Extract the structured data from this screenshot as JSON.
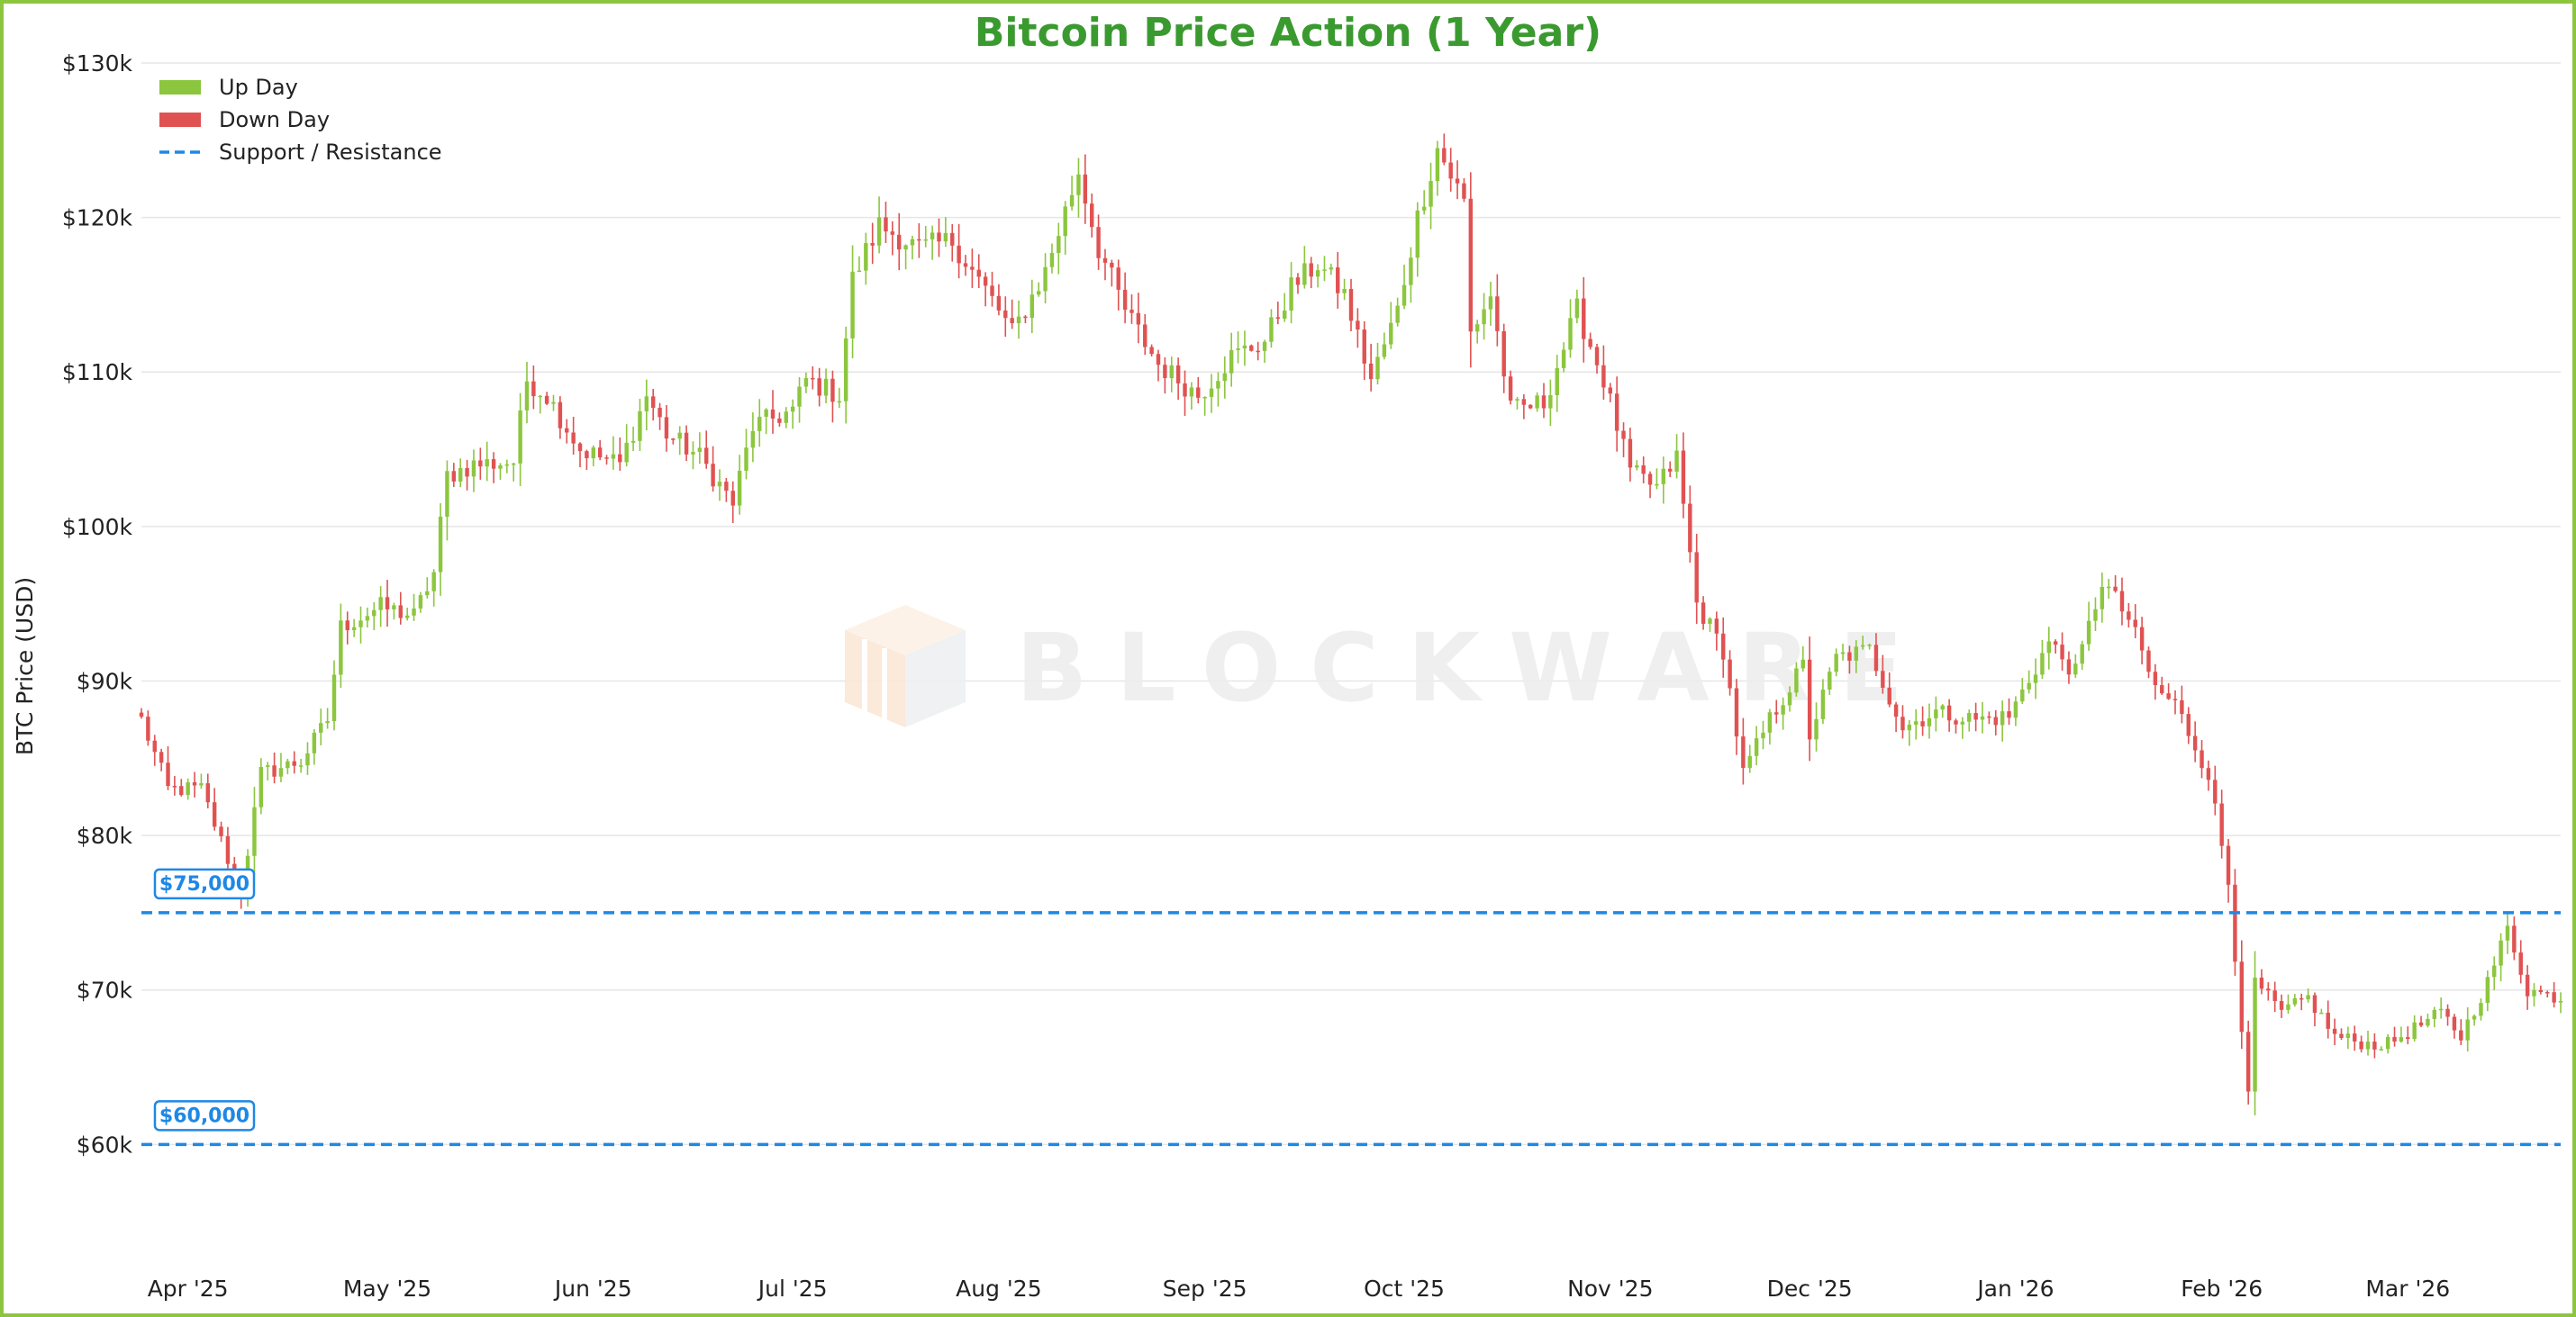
{
  "chart_data": {
    "type": "candlestick",
    "title": "Bitcoin Price Action (1 Year)",
    "ylabel": "BTC Price (USD)",
    "ylim": [
      56000,
      130000
    ],
    "y_ticks": [
      {
        "value": 60000,
        "label": "$60k"
      },
      {
        "value": 70000,
        "label": "$70k"
      },
      {
        "value": 80000,
        "label": "$80k"
      },
      {
        "value": 90000,
        "label": "$90k"
      },
      {
        "value": 100000,
        "label": "$100k"
      },
      {
        "value": 110000,
        "label": "$110k"
      },
      {
        "value": 120000,
        "label": "$120k"
      },
      {
        "value": 130000,
        "label": "$130k"
      }
    ],
    "x_ticks": [
      {
        "date": "2025-04-01",
        "label": "Apr '25"
      },
      {
        "date": "2025-05-01",
        "label": "May '25"
      },
      {
        "date": "2025-06-01",
        "label": "Jun '25"
      },
      {
        "date": "2025-07-01",
        "label": "Jul '25"
      },
      {
        "date": "2025-08-01",
        "label": "Aug '25"
      },
      {
        "date": "2025-09-01",
        "label": "Sep '25"
      },
      {
        "date": "2025-10-01",
        "label": "Oct '25"
      },
      {
        "date": "2025-11-01",
        "label": "Nov '25"
      },
      {
        "date": "2025-12-01",
        "label": "Dec '25"
      },
      {
        "date": "2026-01-01",
        "label": "Jan '26"
      },
      {
        "date": "2026-02-01",
        "label": "Feb '26"
      },
      {
        "date": "2026-03-01",
        "label": "Mar '26"
      }
    ],
    "x_range": [
      "2025-03-25",
      "2026-03-24"
    ],
    "grid": "horizontal",
    "legend_position": "top-left",
    "legend": [
      {
        "label": "Up Day",
        "kind": "up"
      },
      {
        "label": "Down Day",
        "kind": "down"
      },
      {
        "label": "Support / Resistance",
        "kind": "level"
      }
    ],
    "levels": [
      {
        "value": 75000,
        "label": "$75,000"
      },
      {
        "value": 60000,
        "label": "$60,000"
      }
    ],
    "colors": {
      "up": "#8cc63f",
      "down": "#e05252",
      "level": "#1e88e5",
      "title": "#3a9a2f",
      "frame": "#8cc63f"
    },
    "watermark": "BLOCKWARE",
    "close_path": [
      [
        "2025-03-25",
        87500
      ],
      [
        "2025-03-29",
        83000
      ],
      [
        "2025-04-03",
        83000
      ],
      [
        "2025-04-07",
        78500
      ],
      [
        "2025-04-09",
        76500
      ],
      [
        "2025-04-12",
        84000
      ],
      [
        "2025-04-18",
        84800
      ],
      [
        "2025-04-22",
        87500
      ],
      [
        "2025-04-24",
        93500
      ],
      [
        "2025-04-30",
        94800
      ],
      [
        "2025-05-05",
        94200
      ],
      [
        "2025-05-08",
        97000
      ],
      [
        "2025-05-10",
        103300
      ],
      [
        "2025-05-14",
        104000
      ],
      [
        "2025-05-20",
        104200
      ],
      [
        "2025-05-22",
        109500
      ],
      [
        "2025-05-25",
        108500
      ],
      [
        "2025-05-30",
        105000
      ],
      [
        "2025-06-05",
        104000
      ],
      [
        "2025-06-09",
        108500
      ],
      [
        "2025-06-12",
        106000
      ],
      [
        "2025-06-17",
        104500
      ],
      [
        "2025-06-22",
        101500
      ],
      [
        "2025-06-25",
        106500
      ],
      [
        "2025-07-01",
        107500
      ],
      [
        "2025-07-03",
        109500
      ],
      [
        "2025-07-08",
        108500
      ],
      [
        "2025-07-10",
        116000
      ],
      [
        "2025-07-14",
        119500
      ],
      [
        "2025-07-20",
        118000
      ],
      [
        "2025-07-25",
        118500
      ],
      [
        "2025-08-01",
        114000
      ],
      [
        "2025-08-03",
        112500
      ],
      [
        "2025-08-08",
        116500
      ],
      [
        "2025-08-13",
        123000
      ],
      [
        "2025-08-16",
        118000
      ],
      [
        "2025-08-20",
        114000
      ],
      [
        "2025-08-25",
        110500
      ],
      [
        "2025-08-31",
        108500
      ],
      [
        "2025-09-05",
        111000
      ],
      [
        "2025-09-10",
        112000
      ],
      [
        "2025-09-14",
        115500
      ],
      [
        "2025-09-18",
        117000
      ],
      [
        "2025-09-22",
        115000
      ],
      [
        "2025-09-26",
        109500
      ],
      [
        "2025-09-30",
        114000
      ],
      [
        "2025-10-03",
        120000
      ],
      [
        "2025-10-06",
        124500
      ],
      [
        "2025-10-10",
        121000
      ],
      [
        "2025-10-11",
        112500
      ],
      [
        "2025-10-14",
        115000
      ],
      [
        "2025-10-17",
        107500
      ],
      [
        "2025-10-22",
        108000
      ],
      [
        "2025-10-27",
        114000
      ],
      [
        "2025-10-31",
        109500
      ],
      [
        "2025-11-04",
        103500
      ],
      [
        "2025-11-08",
        102500
      ],
      [
        "2025-11-11",
        104500
      ],
      [
        "2025-11-14",
        95000
      ],
      [
        "2025-11-18",
        92000
      ],
      [
        "2025-11-21",
        84000
      ],
      [
        "2025-11-25",
        87500
      ],
      [
        "2025-11-30",
        91000
      ],
      [
        "2025-12-01",
        86500
      ],
      [
        "2025-12-05",
        91500
      ],
      [
        "2025-12-10",
        92000
      ],
      [
        "2025-12-15",
        87000
      ],
      [
        "2025-12-20",
        88000
      ],
      [
        "2025-12-26",
        87500
      ],
      [
        "2025-12-31",
        87700
      ],
      [
        "2026-01-06",
        92500
      ],
      [
        "2026-01-10",
        90500
      ],
      [
        "2026-01-14",
        96500
      ],
      [
        "2026-01-18",
        94000
      ],
      [
        "2026-01-22",
        89500
      ],
      [
        "2026-01-25",
        88500
      ],
      [
        "2026-01-30",
        84000
      ],
      [
        "2026-02-02",
        77000
      ],
      [
        "2026-02-05",
        63000
      ],
      [
        "2026-02-06",
        70500
      ],
      [
        "2026-02-10",
        68500
      ],
      [
        "2026-02-14",
        69500
      ],
      [
        "2026-02-18",
        67000
      ],
      [
        "2026-02-23",
        66500
      ],
      [
        "2026-02-26",
        66500
      ],
      [
        "2026-03-02",
        67500
      ],
      [
        "2026-03-06",
        68500
      ],
      [
        "2026-03-09",
        67000
      ],
      [
        "2026-03-13",
        70500
      ],
      [
        "2026-03-16",
        74000
      ],
      [
        "2026-03-19",
        70000
      ],
      [
        "2026-03-24",
        69500
      ]
    ]
  }
}
